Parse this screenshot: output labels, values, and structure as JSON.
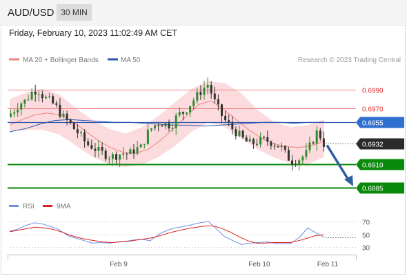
{
  "header": {
    "pair": "AUD/USD",
    "timeframe": "30 MIN",
    "timestamp": "Friday, February 10, 2023 11:02:49 AM CET"
  },
  "legend": {
    "ma20_label": "MA 20 + Bollinger Bands",
    "ma50_label": "MA 50",
    "credit": "Research © 2023 Trading Central"
  },
  "colors": {
    "resistance": "#f08080",
    "support": "#0a8a0a",
    "ma50": "#2a55b0",
    "bollinger": "#fad2d4",
    "candle_up": "#2e8b2e",
    "candle_down": "#333333",
    "arrow": "#2f5fa0",
    "rsi": "#6f8fe0",
    "rsi_ma": "#e02020"
  },
  "chart_data": [
    {
      "type": "candlestick",
      "title": "",
      "y_range": [
        0.6878,
        0.7005
      ],
      "price_levels": [
        {
          "id": "r2",
          "label": "0.6990",
          "value": 0.699,
          "kind": "resistance"
        },
        {
          "id": "r1",
          "label": "0.6970",
          "value": 0.697,
          "kind": "resistance"
        },
        {
          "id": "pivot",
          "label": "0.6955",
          "value": 0.6955,
          "kind": "pivot"
        },
        {
          "id": "last",
          "label": "0.6932",
          "value": 0.6932,
          "kind": "last"
        },
        {
          "id": "s1",
          "label": "0.6910",
          "value": 0.691,
          "kind": "support"
        },
        {
          "id": "s2",
          "label": "0.6885",
          "value": 0.6885,
          "kind": "support"
        }
      ],
      "x_ticks": [
        "Feb 9",
        "Feb 10",
        "Feb 11"
      ],
      "close_path": [
        0.6961,
        0.6967,
        0.6975,
        0.6978,
        0.6987,
        0.6991,
        0.6982,
        0.6978,
        0.6972,
        0.6962,
        0.6956,
        0.6948,
        0.6941,
        0.6932,
        0.6929,
        0.6924,
        0.6921,
        0.6918,
        0.692,
        0.6922,
        0.6921,
        0.6926,
        0.6928,
        0.6943,
        0.6951,
        0.6955,
        0.6953,
        0.6952,
        0.6963,
        0.6966,
        0.6974,
        0.6982,
        0.699,
        0.6996,
        0.6978,
        0.6965,
        0.6955,
        0.6948,
        0.6942,
        0.6935,
        0.6932,
        0.6934,
        0.6936,
        0.6935,
        0.6932,
        0.6928,
        0.6918,
        0.6913,
        0.6916,
        0.692,
        0.6933,
        0.6946,
        0.6932
      ],
      "ma50_path": [
        0.6945,
        0.6948,
        0.6953,
        0.6957,
        0.6958,
        0.6957,
        0.6956,
        0.6955,
        0.6955,
        0.6954,
        0.6953,
        0.6952,
        0.6952,
        0.6951,
        0.6952,
        0.6953,
        0.6954,
        0.6955,
        0.6955,
        0.6954,
        0.6955,
        0.6955
      ],
      "ma20_path": [
        0.6952,
        0.6958,
        0.6963,
        0.6965,
        0.6963,
        0.6956,
        0.6946,
        0.6936,
        0.6928,
        0.6923,
        0.6922,
        0.6926,
        0.6936,
        0.6948,
        0.6961,
        0.6974,
        0.6978,
        0.6969,
        0.6958,
        0.6947,
        0.6938,
        0.6932,
        0.6929,
        0.6928,
        0.693,
        0.6935
      ],
      "bollinger_upper": [
        0.698,
        0.6987,
        0.6991,
        0.6985,
        0.697,
        0.6958,
        0.6948,
        0.6943,
        0.695,
        0.6962,
        0.6977,
        0.6991,
        0.6999,
        0.6997,
        0.6986,
        0.6968,
        0.6955,
        0.695,
        0.6952,
        0.6958
      ],
      "bollinger_lower": [
        0.6946,
        0.6947,
        0.6947,
        0.6942,
        0.693,
        0.6918,
        0.691,
        0.6907,
        0.691,
        0.6918,
        0.693,
        0.6945,
        0.6955,
        0.695,
        0.6938,
        0.6926,
        0.6917,
        0.6911,
        0.691,
        0.6918
      ],
      "forecast_target": 0.6885
    },
    {
      "type": "line",
      "title": "",
      "legend": [
        "RSI",
        "9MA"
      ],
      "y_ticks": [
        70,
        50,
        30
      ],
      "y_range": [
        20,
        80
      ],
      "rsi_values": [
        55,
        58,
        64,
        68,
        66,
        62,
        57,
        48,
        44,
        40,
        36,
        37,
        36,
        38,
        39,
        41,
        42,
        40,
        50,
        56,
        60,
        62,
        65,
        68,
        70,
        58,
        46,
        40,
        34,
        36,
        37,
        38,
        36,
        35,
        36,
        45,
        60,
        52,
        45
      ],
      "ma_values": [
        54,
        56,
        59,
        61,
        60,
        58,
        54,
        49,
        45,
        42,
        40,
        38,
        37,
        38,
        39,
        41,
        43,
        45,
        49,
        53,
        56,
        59,
        61,
        63,
        63,
        59,
        53,
        46,
        40,
        36,
        36,
        37,
        37,
        37,
        40,
        44,
        48,
        49
      ]
    }
  ]
}
